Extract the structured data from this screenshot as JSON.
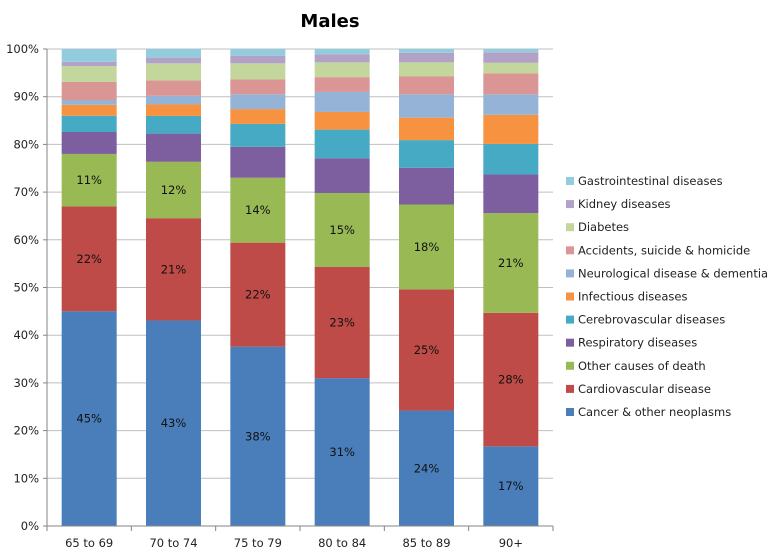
{
  "chart_data": {
    "type": "bar",
    "stacked": true,
    "normalized": true,
    "title": "Males",
    "xlabel": "",
    "ylabel": "",
    "ylim": [
      0,
      100
    ],
    "grid": true,
    "legend_position": "right",
    "categories": [
      "65 to 69",
      "70 to 74",
      "75 to 79",
      "80 to 84",
      "85 to 89",
      "90+"
    ],
    "y_ticks": [
      "0%",
      "10%",
      "20%",
      "30%",
      "40%",
      "50%",
      "60%",
      "70%",
      "80%",
      "90%",
      "100%"
    ],
    "series": [
      {
        "name": "Cancer & other neoplasms",
        "color": "#4A7EBB",
        "values": [
          45,
          43,
          37.6,
          31,
          24.2,
          16.7
        ],
        "labels": [
          "45%",
          "43%",
          "38%",
          "31%",
          "24%",
          "17%"
        ]
      },
      {
        "name": "Cardiovascular disease",
        "color": "#BE4B48",
        "values": [
          22,
          21.4,
          21.8,
          23.3,
          25.4,
          28
        ],
        "labels": [
          "22%",
          "21%",
          "22%",
          "23%",
          "25%",
          "28%"
        ]
      },
      {
        "name": "Other causes of death",
        "color": "#98B954",
        "values": [
          11,
          11.8,
          13.6,
          15.5,
          17.8,
          20.9
        ],
        "labels": [
          "11%",
          "12%",
          "14%",
          "15%",
          "18%",
          "21%"
        ]
      },
      {
        "name": "Respiratory diseases",
        "color": "#7D5FA0",
        "values": [
          4.6,
          5.9,
          6.5,
          7.3,
          7.7,
          8.1
        ]
      },
      {
        "name": "Cerebrovascular diseases",
        "color": "#46AAC5",
        "values": [
          3.4,
          3.7,
          4.8,
          6.0,
          5.8,
          6.4
        ]
      },
      {
        "name": "Infectious diseases",
        "color": "#F69240",
        "values": [
          2.3,
          2.4,
          3.1,
          3.7,
          4.7,
          6.1
        ]
      },
      {
        "name": "Neurological disease & dementia",
        "color": "#95B3D7",
        "values": [
          1.0,
          1.8,
          3.1,
          4.2,
          4.9,
          4.3
        ]
      },
      {
        "name": "Accidents, suicide & homicide",
        "color": "#D99694",
        "values": [
          3.8,
          3.2,
          3.1,
          3.1,
          3.8,
          4.4
        ]
      },
      {
        "name": "Diabetes",
        "color": "#C3D69B",
        "values": [
          3.3,
          3.6,
          3.4,
          3.1,
          2.9,
          2.2
        ]
      },
      {
        "name": "Kidney diseases",
        "color": "#B3A2C7",
        "values": [
          0.9,
          1.2,
          1.6,
          1.7,
          2.0,
          2.2
        ]
      },
      {
        "name": "Gastrointestinal diseases",
        "color": "#93CDDD",
        "values": [
          2.7,
          1.8,
          1.4,
          1.1,
          0.8,
          0.7
        ]
      }
    ]
  }
}
